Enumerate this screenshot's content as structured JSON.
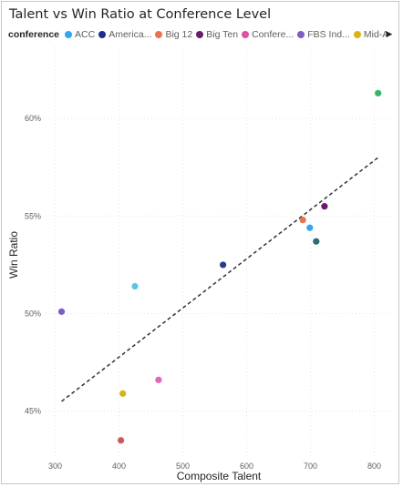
{
  "chart_data": {
    "type": "scatter",
    "title": "Talent vs Win Ratio at Conference Level",
    "xlabel": "Composite Talent",
    "ylabel": "Win Ratio",
    "xlim": [
      285,
      825
    ],
    "ylim": [
      0.4265,
      0.6365
    ],
    "x_ticks": [
      300,
      400,
      500,
      600,
      700,
      800
    ],
    "x_tick_labels": [
      "300",
      "400",
      "500",
      "600",
      "700",
      "800"
    ],
    "y_ticks": [
      0.45,
      0.5,
      0.55,
      0.6
    ],
    "y_tick_labels": [
      "45%",
      "50%",
      "55%",
      "60%"
    ],
    "legend_title": "conference",
    "legend": [
      {
        "name": "ACC",
        "color": "#33a6f0"
      },
      {
        "name": "America...",
        "color": "#1b2e8c"
      },
      {
        "name": "Big 12",
        "color": "#e8744f"
      },
      {
        "name": "Big Ten",
        "color": "#6a1b6d"
      },
      {
        "name": "Confere...",
        "color": "#e04fa6"
      },
      {
        "name": "FBS Ind...",
        "color": "#7b5fc4"
      },
      {
        "name": "Mid-Am...",
        "color": "#d6b414"
      }
    ],
    "points": [
      {
        "x": 310,
        "y": 0.501,
        "color": "#7b5fc4"
      },
      {
        "x": 403,
        "y": 0.435,
        "color": "#cc5a5a"
      },
      {
        "x": 406,
        "y": 0.459,
        "color": "#d6b414"
      },
      {
        "x": 425,
        "y": 0.514,
        "color": "#5bc4ea"
      },
      {
        "x": 462,
        "y": 0.466,
        "color": "#e066b8"
      },
      {
        "x": 563,
        "y": 0.525,
        "color": "#2a3d84"
      },
      {
        "x": 688,
        "y": 0.548,
        "color": "#e8744f"
      },
      {
        "x": 699,
        "y": 0.544,
        "color": "#33a6f0"
      },
      {
        "x": 709,
        "y": 0.537,
        "color": "#2f6b73"
      },
      {
        "x": 722,
        "y": 0.555,
        "color": "#6a1b6d"
      },
      {
        "x": 806,
        "y": 0.613,
        "color": "#34b66a"
      }
    ],
    "trendline": {
      "x": [
        310,
        806
      ],
      "y": [
        0.455,
        0.58
      ]
    },
    "grid": true,
    "legend_position": "top"
  }
}
